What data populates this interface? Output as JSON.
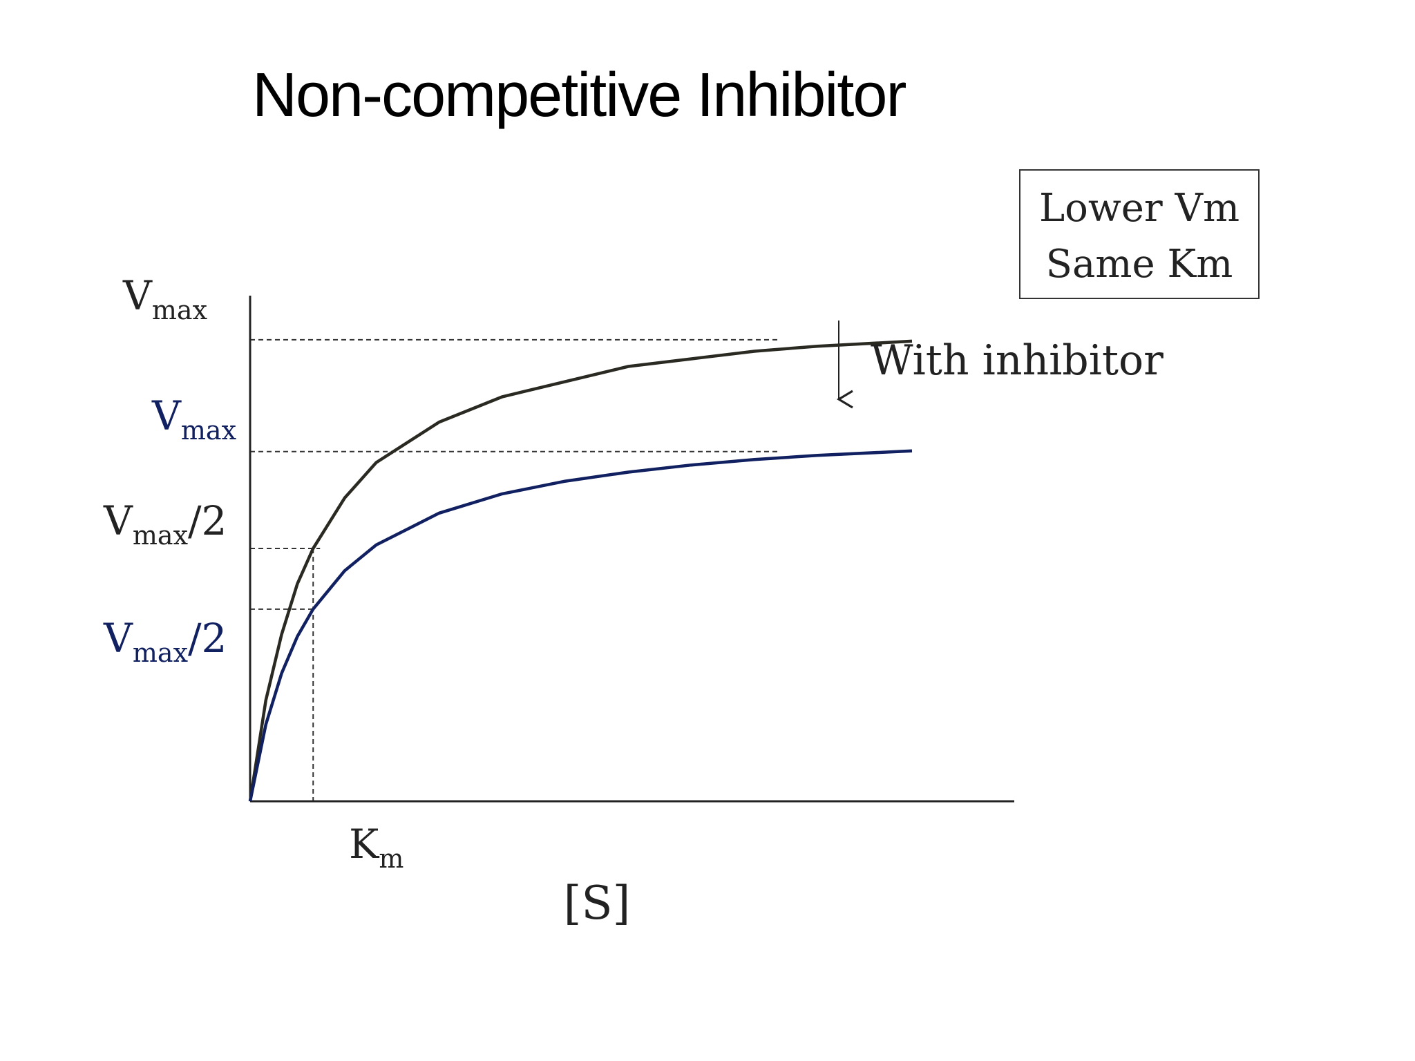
{
  "colors": {
    "no_inhibitor": "#2a2a22",
    "with_inhibitor": "#102060",
    "background": "#ffffff"
  },
  "slide": {
    "title": "Non-competitive Inhibitor",
    "note_box": {
      "line1": "Lower Vm",
      "line2": "Same Km"
    },
    "arrow_label": "With inhibitor"
  },
  "axis_labels": {
    "vmax": {
      "main": "V",
      "sub": "max"
    },
    "vmax_inh": {
      "main": "V",
      "sub": "max"
    },
    "vmax_half": {
      "main": "V",
      "sub": "max",
      "tail": "/2"
    },
    "vmax_half_inh": {
      "main": "V",
      "sub": "max",
      "tail": "/2"
    },
    "km": {
      "main": "K",
      "sub": "m"
    },
    "xlabel": "[S]"
  },
  "chart_data": {
    "type": "line",
    "title": "Non-competitive Inhibitor",
    "xlabel": "[S]",
    "ylabel": "",
    "xlim": [
      0,
      12
    ],
    "ylim": [
      0,
      1.0
    ],
    "km": 1,
    "series": [
      {
        "color": "#2a2a22",
        "vmax": 1.0,
        "x": [
          0,
          0.25,
          0.5,
          0.75,
          1,
          1.5,
          2,
          3,
          4,
          5,
          6,
          7,
          8,
          9,
          10.5
        ],
        "y": [
          0,
          0.2,
          0.33,
          0.43,
          0.5,
          0.6,
          0.67,
          0.75,
          0.8,
          0.83,
          0.86,
          0.875,
          0.89,
          0.9,
          0.91
        ]
      },
      {
        "color": "#102060",
        "vmax": 0.76,
        "x": [
          0,
          0.25,
          0.5,
          0.75,
          1,
          1.5,
          2,
          3,
          4,
          5,
          6,
          7,
          8,
          9,
          10.5
        ],
        "y": [
          0,
          0.152,
          0.253,
          0.326,
          0.38,
          0.456,
          0.507,
          0.57,
          0.608,
          0.633,
          0.651,
          0.665,
          0.676,
          0.684,
          0.693
        ]
      }
    ],
    "grid": false,
    "legend": "none"
  }
}
